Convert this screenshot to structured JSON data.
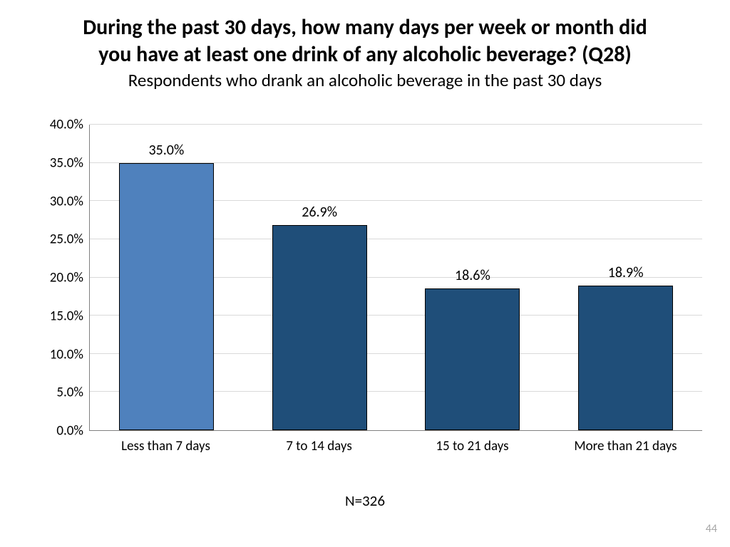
{
  "title": {
    "line1": "During the past 30 days, how many days per week or month did",
    "line2": "you have at least one drink of any alcoholic beverage? (Q28)",
    "subtitle": "Respondents who drank an alcoholic beverage in the past 30 days"
  },
  "chart": {
    "type": "bar",
    "categories": [
      "Less than 7 days",
      "7 to 14 days",
      "15 to 21 days",
      "More than 21 days"
    ],
    "values": [
      35.0,
      26.9,
      18.6,
      18.9
    ],
    "value_labels": [
      "35.0%",
      "26.9%",
      "18.6%",
      "18.9%"
    ],
    "bar_colors": [
      "#4f81bd",
      "#1f4e79",
      "#1f4e79",
      "#1f4e79"
    ],
    "bar_border": "#000000",
    "ylim": [
      0.0,
      40.0
    ],
    "ytick_step": 5.0,
    "yticks": [
      "0.0%",
      "5.0%",
      "10.0%",
      "15.0%",
      "20.0%",
      "25.0%",
      "30.0%",
      "35.0%",
      "40.0%"
    ],
    "grid_color": "#d9d9d9",
    "value_fontsize": 20,
    "axis_fontsize": 19,
    "background_color": "#ffffff"
  },
  "footer": {
    "n_label": "N=326",
    "page_number": "44"
  }
}
